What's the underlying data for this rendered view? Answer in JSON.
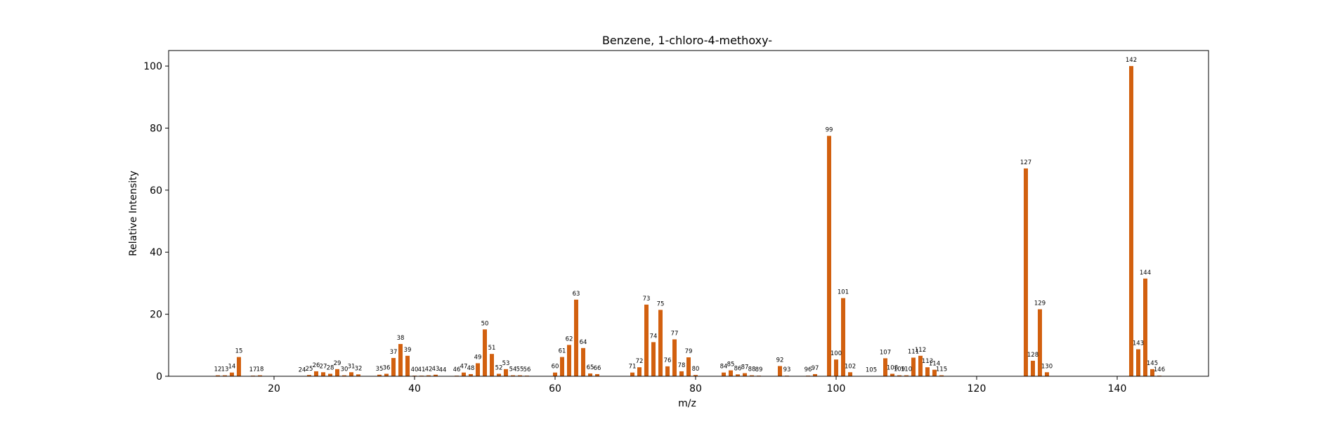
{
  "chart_data": {
    "type": "bar",
    "title": "Benzene, 1-chloro-4-methoxy-",
    "xlabel": "m/z",
    "ylabel": "Relative Intensity",
    "xlim": [
      5,
      153
    ],
    "ylim": [
      0,
      105
    ],
    "xticks": [
      20,
      40,
      60,
      80,
      100,
      120,
      140
    ],
    "yticks": [
      0,
      20,
      40,
      60,
      80,
      100
    ],
    "grid": false,
    "colors": {
      "bar": "#d2600f",
      "axes": "#000000",
      "background": "#ffffff"
    },
    "x": [
      12,
      13,
      14,
      15,
      17,
      18,
      24,
      25,
      26,
      27,
      28,
      29,
      30,
      31,
      32,
      35,
      36,
      37,
      38,
      39,
      40,
      41,
      42,
      43,
      44,
      46,
      47,
      48,
      49,
      50,
      51,
      52,
      53,
      54,
      55,
      56,
      60,
      61,
      62,
      63,
      64,
      65,
      66,
      71,
      72,
      73,
      74,
      75,
      76,
      77,
      78,
      79,
      80,
      84,
      85,
      86,
      87,
      88,
      89,
      92,
      93,
      96,
      97,
      99,
      100,
      101,
      102,
      105,
      107,
      108,
      109,
      110,
      111,
      112,
      113,
      114,
      115,
      127,
      128,
      129,
      130,
      142,
      143,
      144,
      145,
      146
    ],
    "values": [
      0.3,
      0.3,
      1.2,
      6.2,
      0.2,
      0.3,
      0.1,
      0.4,
      1.6,
      1.3,
      0.8,
      2.3,
      0.3,
      1.3,
      0.6,
      0.5,
      0.8,
      5.9,
      10.4,
      6.6,
      0.2,
      0.2,
      0.3,
      0.5,
      0.1,
      0.2,
      1.2,
      0.7,
      4.2,
      15.1,
      7.2,
      0.8,
      2.3,
      0.3,
      0.3,
      0.2,
      1.2,
      6.2,
      10.1,
      24.7,
      9.1,
      0.9,
      0.7,
      1.2,
      2.9,
      23.1,
      11.0,
      21.4,
      3.2,
      11.9,
      1.6,
      6.1,
      0.4,
      1.2,
      1.9,
      0.6,
      1.0,
      0.3,
      0.2,
      3.3,
      0.2,
      0.2,
      0.7,
      77.5,
      5.4,
      25.2,
      1.3,
      0.1,
      5.8,
      0.8,
      0.3,
      0.3,
      6.0,
      6.6,
      2.9,
      2.1,
      0.3,
      67.0,
      5.0,
      21.6,
      1.3,
      100.0,
      8.7,
      31.5,
      2.3,
      0.2
    ]
  }
}
